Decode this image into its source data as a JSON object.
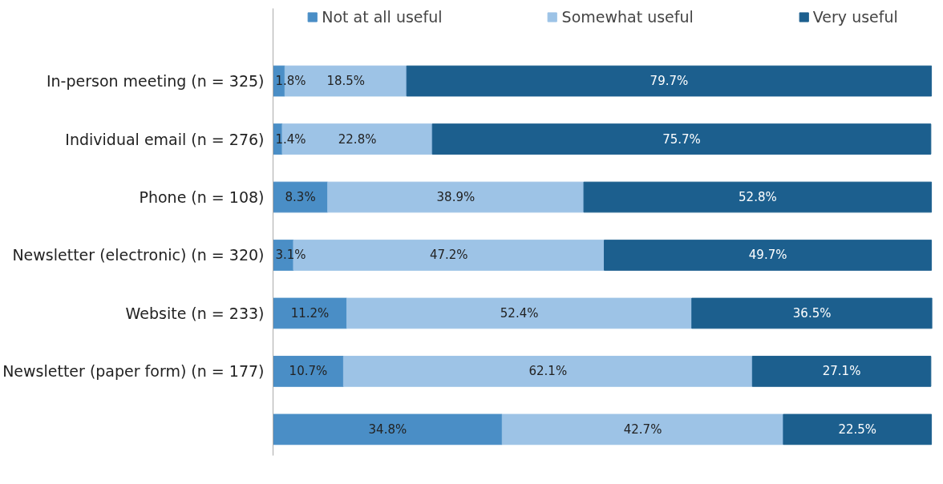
{
  "chart_data": {
    "type": "bar",
    "orientation": "horizontal",
    "stacked": true,
    "legend": "top",
    "grid": false,
    "tick_labels": "y",
    "categories": [
      "In-person meeting (n = 325)",
      "Individual email (n = 276)",
      "Phone (n = 108)",
      "Newsletter (electronic) (n = 320)",
      "Website (n = 233)",
      "Newsletter (paper form) (n = 177)",
      null
    ],
    "series": [
      {
        "name": "Not at all useful",
        "color": "#4a8ec6",
        "values": [
          1.8,
          1.4,
          8.3,
          3.1,
          11.2,
          10.7,
          34.8
        ],
        "value_labels": [
          "1.8%",
          "1.4%",
          "8.3%",
          "3.1%",
          "11.2%",
          "10.7%",
          "34.8%"
        ]
      },
      {
        "name": "Somewhat useful",
        "color": "#9dc3e6",
        "values": [
          18.5,
          22.8,
          38.9,
          47.2,
          52.4,
          62.1,
          42.7
        ],
        "value_labels": [
          "18.5%",
          "22.8%",
          "38.9%",
          "47.2%",
          "52.4%",
          "62.1%",
          "42.7%"
        ]
      },
      {
        "name": "Very useful",
        "color": "#1c5f8e",
        "values": [
          79.7,
          75.7,
          52.8,
          49.7,
          36.5,
          27.1,
          22.5
        ],
        "value_labels": [
          "79.7%",
          "75.7%",
          "52.8%",
          "49.7%",
          "36.5%",
          "27.1%",
          "22.5%"
        ]
      }
    ]
  }
}
